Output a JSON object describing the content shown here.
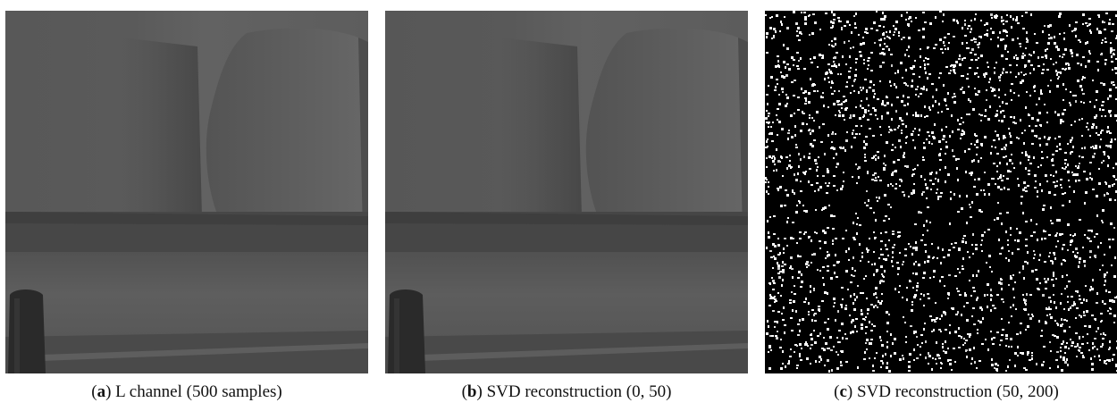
{
  "figure": {
    "panels": [
      {
        "letter": "a",
        "caption": "L channel (500 samples)",
        "content": "photo"
      },
      {
        "letter": "b",
        "caption": "SVD reconstruction (0, 50)",
        "content": "photo"
      },
      {
        "letter": "c",
        "caption": "SVD reconstruction (50, 200)",
        "content": "noise"
      }
    ]
  },
  "colors": {
    "wall": "#5a5a5a",
    "sofa_back": "#474747",
    "sofa_seat": "#5f5f5f",
    "cushion": "#5c5c5c",
    "vase": "#2a2a2a",
    "noise_bg": "#000000",
    "noise_dot": "#ffffff"
  }
}
